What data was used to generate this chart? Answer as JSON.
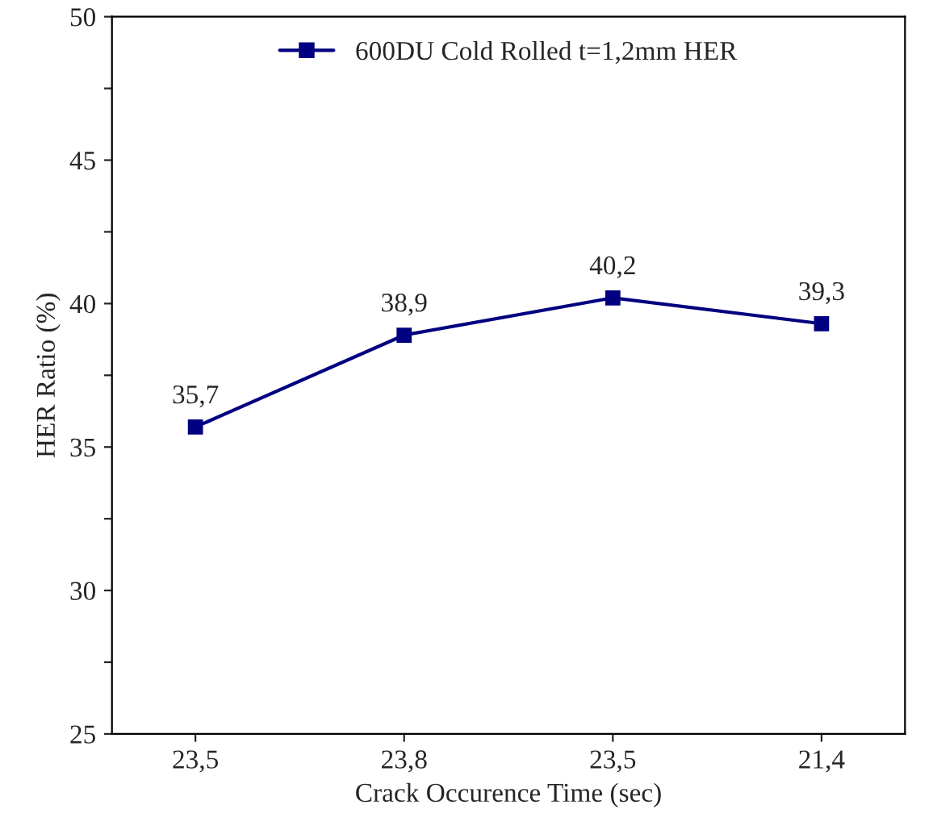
{
  "chart_data": {
    "type": "line",
    "xlabel": "Crack Occurence Time (sec)",
    "ylabel": "HER Ratio (%)",
    "categories": [
      "23,5",
      "23,8",
      "23,5",
      "21,4"
    ],
    "series": [
      {
        "name": "600DU Cold Rolled t=1,2mm HER",
        "color": "#000080",
        "values": [
          35.7,
          38.9,
          40.2,
          39.3
        ],
        "value_labels": [
          "35,7",
          "38,9",
          "40,2",
          "39,3"
        ]
      }
    ],
    "ylim": [
      25,
      50
    ],
    "yticks": [
      25,
      {
        "value": 27.5,
        "label": null
      },
      30,
      {
        "value": 32.5,
        "label": null
      },
      35,
      {
        "value": 37.5,
        "label": null
      },
      40,
      {
        "value": 42.5,
        "label": null
      },
      45,
      {
        "value": 47.5,
        "label": null
      },
      50
    ],
    "legend": "top",
    "marker": "square",
    "line_style": "solid",
    "grid": false
  }
}
